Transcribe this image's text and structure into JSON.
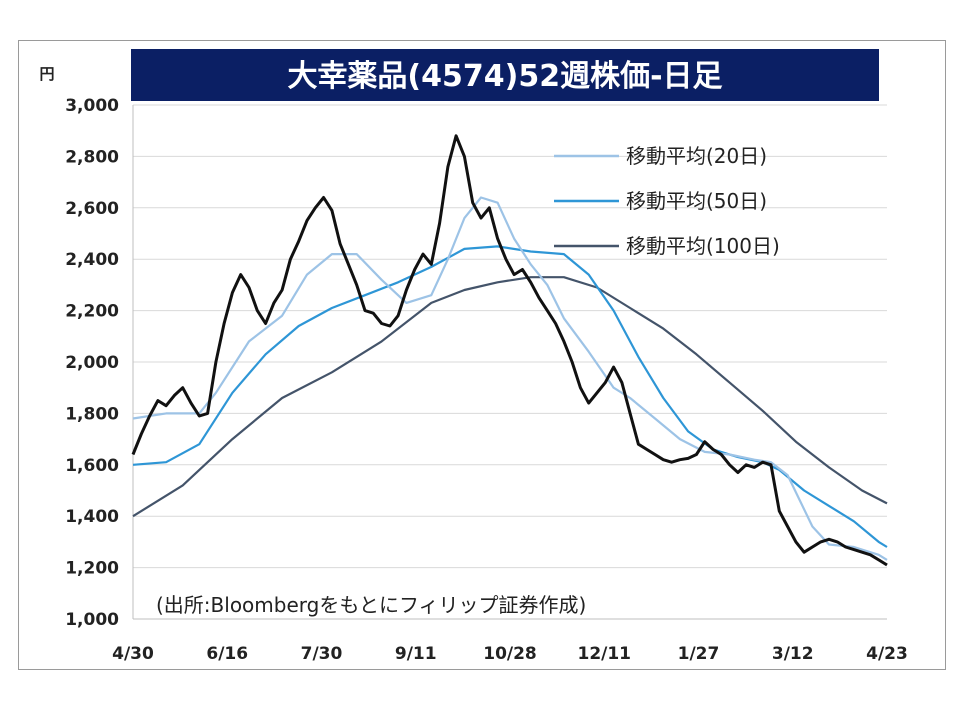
{
  "chart_data": {
    "type": "line",
    "title": "大幸薬品(4574)52週株価-日足",
    "unit": "円",
    "ylim": [
      1000,
      3000
    ],
    "y_ticks": [
      "1,000",
      "1,200",
      "1,400",
      "1,600",
      "1,800",
      "2,000",
      "2,200",
      "2,400",
      "2,600",
      "2,800",
      "3,000"
    ],
    "x_ticks": [
      "4/30",
      "6/16",
      "7/30",
      "9/11",
      "10/28",
      "12/11",
      "1/27",
      "3/12",
      "4/23"
    ],
    "grid": "horizontal",
    "legend_position": "top-right",
    "source": "(出所:Bloombergをもとにフィリップ証券作成)",
    "series": [
      {
        "name": "",
        "color": "#111111",
        "points": [
          [
            0,
            1640
          ],
          [
            1,
            1720
          ],
          [
            2,
            1790
          ],
          [
            3,
            1850
          ],
          [
            4,
            1830
          ],
          [
            5,
            1870
          ],
          [
            6,
            1900
          ],
          [
            7,
            1840
          ],
          [
            8,
            1790
          ],
          [
            9,
            1800
          ],
          [
            10,
            2000
          ],
          [
            11,
            2150
          ],
          [
            12,
            2270
          ],
          [
            13,
            2340
          ],
          [
            14,
            2290
          ],
          [
            15,
            2200
          ],
          [
            16,
            2150
          ],
          [
            17,
            2230
          ],
          [
            18,
            2280
          ],
          [
            19,
            2400
          ],
          [
            20,
            2470
          ],
          [
            21,
            2550
          ],
          [
            22,
            2600
          ],
          [
            23,
            2640
          ],
          [
            24,
            2590
          ],
          [
            25,
            2460
          ],
          [
            26,
            2380
          ],
          [
            27,
            2300
          ],
          [
            28,
            2200
          ],
          [
            29,
            2190
          ],
          [
            30,
            2150
          ],
          [
            31,
            2140
          ],
          [
            32,
            2180
          ],
          [
            33,
            2280
          ],
          [
            34,
            2360
          ],
          [
            35,
            2420
          ],
          [
            36,
            2380
          ],
          [
            37,
            2540
          ],
          [
            38,
            2760
          ],
          [
            39,
            2880
          ],
          [
            40,
            2800
          ],
          [
            41,
            2620
          ],
          [
            42,
            2560
          ],
          [
            43,
            2600
          ],
          [
            44,
            2480
          ],
          [
            45,
            2400
          ],
          [
            46,
            2340
          ],
          [
            47,
            2360
          ],
          [
            48,
            2310
          ],
          [
            49,
            2250
          ],
          [
            50,
            2200
          ],
          [
            51,
            2150
          ],
          [
            52,
            2080
          ],
          [
            53,
            2000
          ],
          [
            54,
            1900
          ],
          [
            55,
            1840
          ],
          [
            56,
            1880
          ],
          [
            57,
            1920
          ],
          [
            58,
            1980
          ],
          [
            59,
            1920
          ],
          [
            60,
            1800
          ],
          [
            61,
            1680
          ],
          [
            62,
            1660
          ],
          [
            63,
            1640
          ],
          [
            64,
            1620
          ],
          [
            65,
            1610
          ],
          [
            66,
            1620
          ],
          [
            67,
            1625
          ],
          [
            68,
            1640
          ],
          [
            69,
            1690
          ],
          [
            70,
            1660
          ],
          [
            71,
            1640
          ],
          [
            72,
            1600
          ],
          [
            73,
            1570
          ],
          [
            74,
            1600
          ],
          [
            75,
            1590
          ],
          [
            76,
            1610
          ],
          [
            77,
            1600
          ],
          [
            78,
            1420
          ],
          [
            79,
            1360
          ],
          [
            80,
            1300
          ],
          [
            81,
            1260
          ],
          [
            82,
            1280
          ],
          [
            83,
            1300
          ],
          [
            84,
            1310
          ],
          [
            85,
            1300
          ],
          [
            86,
            1280
          ],
          [
            87,
            1270
          ],
          [
            88,
            1260
          ],
          [
            89,
            1250
          ],
          [
            90,
            1230
          ],
          [
            91,
            1210
          ]
        ]
      },
      {
        "name": "移動平均(20日)",
        "color": "#9dc3e6",
        "points": [
          [
            0,
            1780
          ],
          [
            4,
            1800
          ],
          [
            8,
            1800
          ],
          [
            10,
            1880
          ],
          [
            14,
            2080
          ],
          [
            18,
            2180
          ],
          [
            21,
            2340
          ],
          [
            24,
            2420
          ],
          [
            27,
            2420
          ],
          [
            30,
            2320
          ],
          [
            33,
            2230
          ],
          [
            36,
            2260
          ],
          [
            38,
            2400
          ],
          [
            40,
            2560
          ],
          [
            42,
            2640
          ],
          [
            44,
            2620
          ],
          [
            46,
            2480
          ],
          [
            48,
            2380
          ],
          [
            50,
            2300
          ],
          [
            52,
            2170
          ],
          [
            55,
            2040
          ],
          [
            58,
            1900
          ],
          [
            60,
            1860
          ],
          [
            63,
            1780
          ],
          [
            66,
            1700
          ],
          [
            69,
            1650
          ],
          [
            72,
            1640
          ],
          [
            75,
            1620
          ],
          [
            77,
            1610
          ],
          [
            79,
            1560
          ],
          [
            82,
            1360
          ],
          [
            84,
            1290
          ],
          [
            87,
            1280
          ],
          [
            90,
            1250
          ],
          [
            91,
            1230
          ]
        ]
      },
      {
        "name": "移動平均(50日)",
        "color": "#2e96d6",
        "points": [
          [
            0,
            1600
          ],
          [
            4,
            1610
          ],
          [
            8,
            1680
          ],
          [
            12,
            1880
          ],
          [
            16,
            2030
          ],
          [
            20,
            2140
          ],
          [
            24,
            2210
          ],
          [
            28,
            2260
          ],
          [
            32,
            2310
          ],
          [
            36,
            2370
          ],
          [
            40,
            2440
          ],
          [
            44,
            2450
          ],
          [
            48,
            2430
          ],
          [
            52,
            2420
          ],
          [
            55,
            2340
          ],
          [
            58,
            2200
          ],
          [
            61,
            2020
          ],
          [
            64,
            1860
          ],
          [
            67,
            1730
          ],
          [
            70,
            1660
          ],
          [
            73,
            1630
          ],
          [
            76,
            1610
          ],
          [
            78,
            1580
          ],
          [
            81,
            1500
          ],
          [
            84,
            1440
          ],
          [
            87,
            1380
          ],
          [
            90,
            1300
          ],
          [
            91,
            1280
          ]
        ]
      },
      {
        "name": "移動平均(100日)",
        "color": "#44546a",
        "points": [
          [
            0,
            1400
          ],
          [
            6,
            1520
          ],
          [
            12,
            1700
          ],
          [
            18,
            1860
          ],
          [
            24,
            1960
          ],
          [
            30,
            2080
          ],
          [
            36,
            2230
          ],
          [
            40,
            2280
          ],
          [
            44,
            2310
          ],
          [
            48,
            2330
          ],
          [
            52,
            2330
          ],
          [
            56,
            2290
          ],
          [
            60,
            2210
          ],
          [
            64,
            2130
          ],
          [
            68,
            2030
          ],
          [
            72,
            1920
          ],
          [
            76,
            1810
          ],
          [
            80,
            1690
          ],
          [
            84,
            1590
          ],
          [
            88,
            1500
          ],
          [
            91,
            1450
          ]
        ]
      }
    ]
  }
}
